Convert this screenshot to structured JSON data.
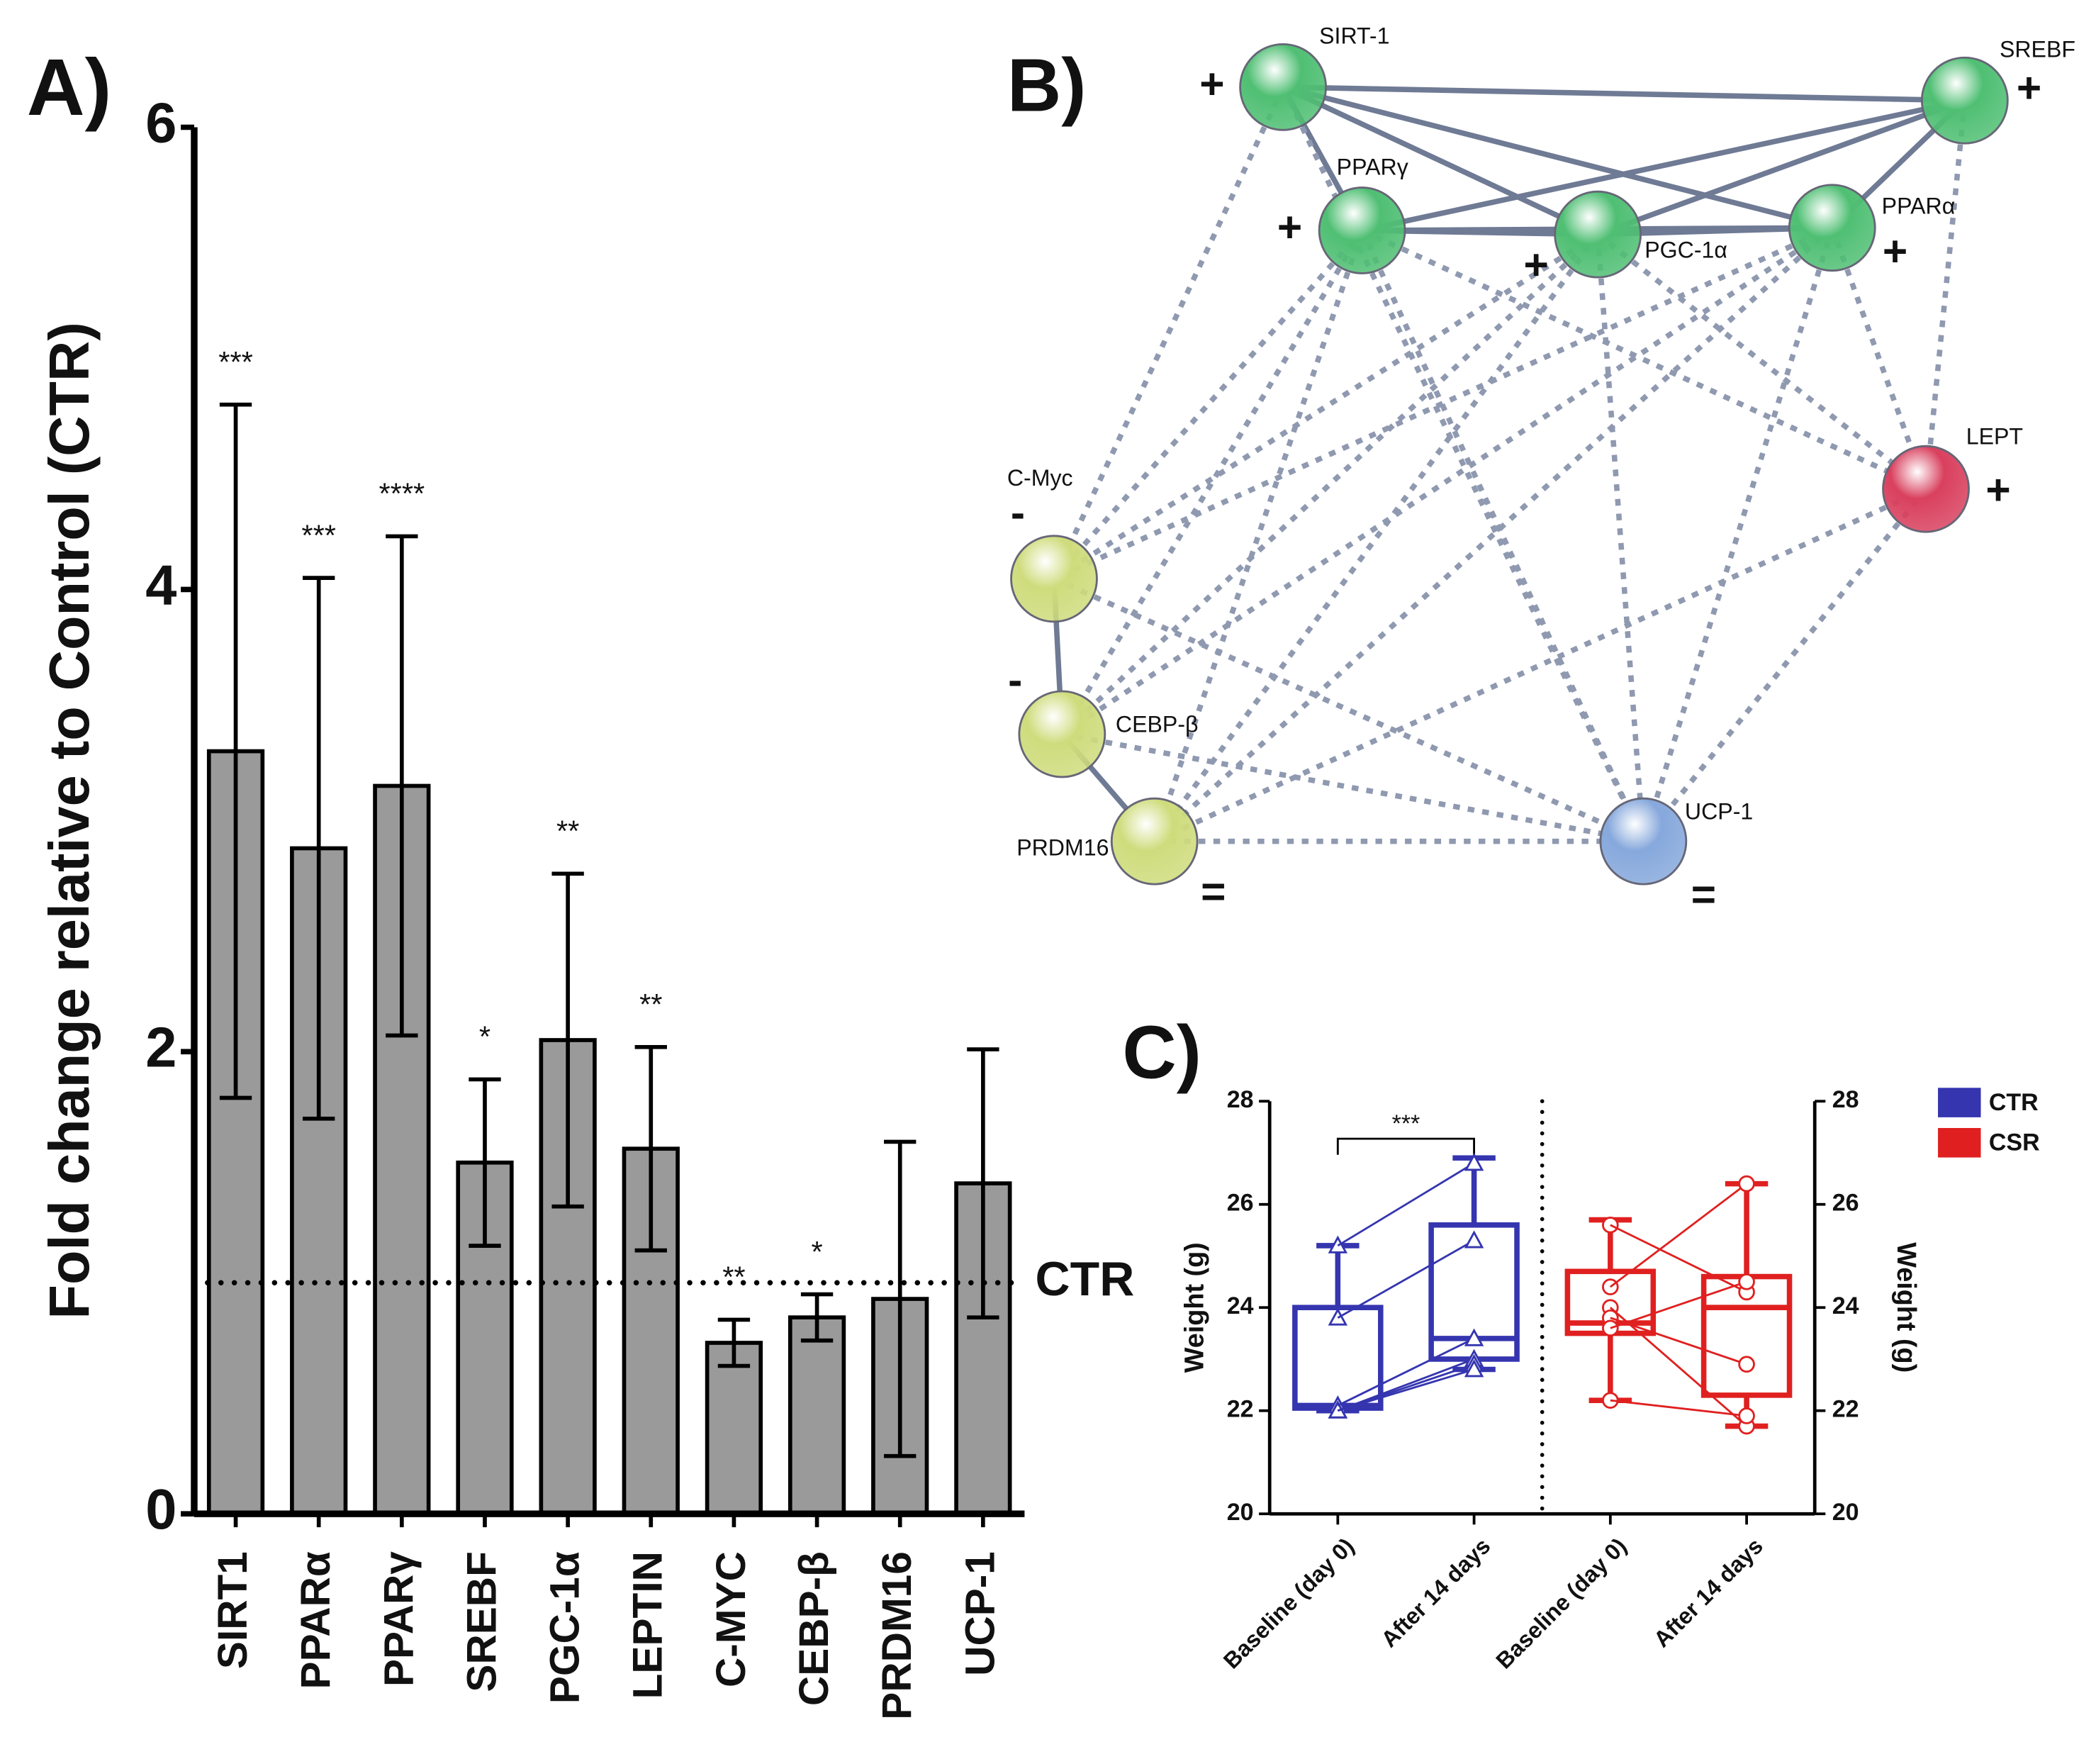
{
  "chart_data": [
    {
      "type": "bar",
      "panel": "A)",
      "ylabel": "Fold change relative to Control (CTR)",
      "categories": [
        "SIRT1",
        "PPARα",
        "PPARγ",
        "SREBF",
        "PGC-1α",
        "LEPTIN",
        "C-MYC",
        "CEBP-β",
        "PRDM16",
        "UCP-1"
      ],
      "values": [
        3.3,
        2.88,
        3.15,
        1.52,
        2.05,
        1.58,
        0.74,
        0.85,
        0.93,
        1.43
      ],
      "errors": [
        1.5,
        1.17,
        1.08,
        0.36,
        0.72,
        0.44,
        0.1,
        0.1,
        0.68,
        0.58
      ],
      "annotations": [
        "***",
        "***",
        "****",
        "*",
        "**",
        "**",
        "**",
        "*",
        null,
        null
      ],
      "color": "#9a9a9a",
      "reference_line": {
        "value": 1,
        "label": "CTR"
      },
      "ylim": [
        0,
        6
      ],
      "yticks": [
        0,
        2,
        4,
        6
      ]
    },
    {
      "type": "box",
      "panel": "C)",
      "ylabel": "Weight (g)",
      "y2label": "Weight (g)",
      "categories": [
        "Baseline (day 0)",
        "After 14 days",
        "Baseline (day 0)",
        "After 14 days"
      ],
      "significance": "***",
      "ylim": [
        20,
        28
      ],
      "yticks": [
        20,
        22,
        24,
        26,
        28
      ],
      "y2lim": [
        20,
        28
      ],
      "y2ticks": [
        20,
        22,
        24,
        26,
        28
      ],
      "series": [
        {
          "name": "CTR",
          "color": "#3535b0",
          "marker": "triangle",
          "boxes": [
            {
              "min": 22.0,
              "q1": 22.05,
              "median": 22.1,
              "q3": 24.0,
              "max": 25.2,
              "points": [
                25.2,
                23.8,
                22.1,
                22.0,
                22.0,
                22.0
              ]
            },
            {
              "min": 22.8,
              "q1": 23.0,
              "median": 23.4,
              "q3": 25.6,
              "max": 26.9,
              "points": [
                26.8,
                25.3,
                23.4,
                23.0,
                22.9,
                22.8
              ]
            },
            null,
            null
          ]
        },
        {
          "name": "CSR",
          "color": "#e02020",
          "marker": "circle",
          "boxes": [
            null,
            null,
            {
              "min": 22.2,
              "q1": 23.5,
              "median": 23.7,
              "q3": 24.7,
              "max": 25.7,
              "points": [
                25.6,
                24.4,
                24.0,
                23.8,
                23.6,
                22.2
              ]
            },
            {
              "min": 21.7,
              "q1": 22.3,
              "median": 24.0,
              "q3": 24.6,
              "max": 26.4,
              "points": [
                24.3,
                26.4,
                21.7,
                22.9,
                24.5,
                21.9
              ]
            }
          ]
        }
      ]
    }
  ],
  "network": {
    "panel": "B)",
    "nodes": [
      {
        "label": "SIRT-1",
        "sign": "+",
        "color": "#4fbf73"
      },
      {
        "label": "SREBF",
        "sign": "+",
        "color": "#4fbf73"
      },
      {
        "label": "PPARγ",
        "sign": "+",
        "color": "#4fbf73"
      },
      {
        "label": "PGC-1α",
        "sign": "+",
        "color": "#4fbf73"
      },
      {
        "label": "PPARα",
        "sign": "+",
        "color": "#4fbf73"
      },
      {
        "label": "LEPT",
        "sign": "+",
        "color": "#d9405e"
      },
      {
        "label": "C-Myc",
        "sign": "-",
        "color": "#cfdc7c"
      },
      {
        "label": "CEBP-β",
        "sign": "-",
        "color": "#cfdc7c"
      },
      {
        "label": "PRDM16",
        "sign": "=",
        "color": "#cfdc7c"
      },
      {
        "label": "UCP-1",
        "sign": "=",
        "color": "#86a8dc"
      }
    ]
  }
}
